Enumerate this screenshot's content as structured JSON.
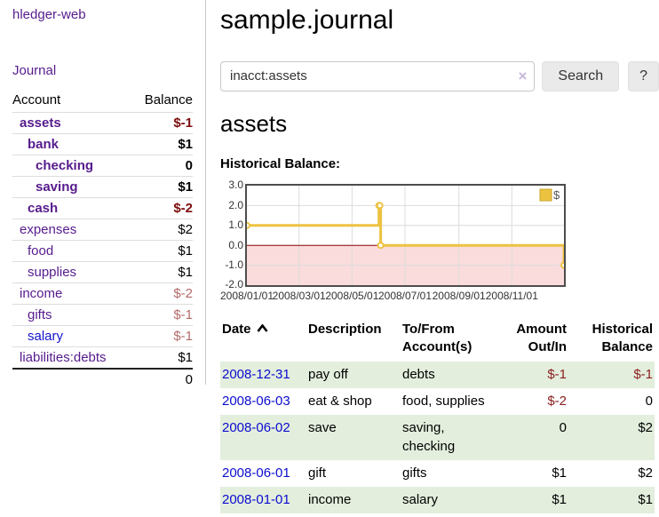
{
  "app": {
    "brand": "hledger-web",
    "nav_journal": "Journal"
  },
  "sidebar": {
    "columns": {
      "account": "Account",
      "balance": "Balance"
    },
    "accounts": [
      {
        "name": "assets",
        "depth": 1,
        "bold": true,
        "link_color": "purple",
        "balance": "$-1",
        "neg": "strong"
      },
      {
        "name": "bank",
        "depth": 2,
        "bold": true,
        "link_color": "purple",
        "balance": "$1",
        "neg": "none"
      },
      {
        "name": "checking",
        "depth": 3,
        "bold": true,
        "link_color": "purple",
        "balance": "0",
        "neg": "none"
      },
      {
        "name": "saving",
        "depth": 3,
        "bold": true,
        "link_color": "purple",
        "balance": "$1",
        "neg": "none"
      },
      {
        "name": "cash",
        "depth": 2,
        "bold": true,
        "link_color": "purple",
        "balance": "$-2",
        "neg": "strong"
      },
      {
        "name": "expenses",
        "depth": 1,
        "bold": false,
        "link_color": "purple",
        "balance": "$2",
        "neg": "none"
      },
      {
        "name": "food",
        "depth": 2,
        "bold": false,
        "link_color": "purple",
        "balance": "$1",
        "neg": "none"
      },
      {
        "name": "supplies",
        "depth": 2,
        "bold": false,
        "link_color": "purple",
        "balance": "$1",
        "neg": "none"
      },
      {
        "name": "income",
        "depth": 1,
        "bold": false,
        "link_color": "purple",
        "balance": "$-2",
        "neg": "soft"
      },
      {
        "name": "gifts",
        "depth": 2,
        "bold": false,
        "link_color": "purple",
        "balance": "$-1",
        "neg": "soft"
      },
      {
        "name": "salary",
        "depth": 2,
        "bold": false,
        "link_color": "blue",
        "balance": "$-1",
        "neg": "soft"
      },
      {
        "name": "liabilities:debts",
        "depth": 1,
        "bold": false,
        "link_color": "purple",
        "balance": "$1",
        "neg": "none"
      }
    ],
    "total": "0"
  },
  "header": {
    "title": "sample.journal"
  },
  "search": {
    "value": "inacct:assets",
    "clear_icon": "×",
    "button": "Search",
    "help_button": "?"
  },
  "account_page": {
    "heading": "assets",
    "chart_title": "Historical Balance:"
  },
  "chart_data": {
    "type": "line",
    "style": "step-after",
    "title": "Historical Balance",
    "series": [
      {
        "name": "$",
        "color": "#edc240",
        "points": [
          [
            "2008-01-01",
            1.0
          ],
          [
            "2008-06-01",
            2.0
          ],
          [
            "2008-06-02",
            2.0
          ],
          [
            "2008-06-03",
            0.0
          ],
          [
            "2008-12-31",
            -1.0
          ]
        ]
      }
    ],
    "x_range": [
      "2008-01-01",
      "2008-12-31"
    ],
    "ylim": [
      -2.0,
      3.0
    ],
    "y_ticks": [
      "3.0",
      "2.0",
      "1.0",
      "0.0",
      "-1.0",
      "-2.0"
    ],
    "x_ticks": [
      "2008/01/01",
      "2008/03/01",
      "2008/05/01",
      "2008/07/01",
      "2008/09/01",
      "2008/11/01"
    ],
    "legend": "$",
    "legend_position": "top-right",
    "grid": true,
    "grid_color": "#dcdcdc",
    "negative_region_color": "#fbdcdc",
    "zero_line_color": "#8b0000",
    "border_color": "#4d4d4d"
  },
  "transactions": {
    "columns": [
      {
        "line1": "Date",
        "line2": "",
        "align": "left",
        "sorted": true
      },
      {
        "line1": "Description",
        "line2": "",
        "align": "left",
        "sorted": false
      },
      {
        "line1": "To/From",
        "line2": "Account(s)",
        "align": "left",
        "sorted": false
      },
      {
        "line1": "Amount",
        "line2": "Out/In",
        "align": "right",
        "sorted": false
      },
      {
        "line1": "Historical",
        "line2": "Balance",
        "align": "right",
        "sorted": false
      }
    ],
    "rows": [
      {
        "date": "2008-12-31",
        "description": "pay off",
        "accounts": "debts",
        "amount": "$-1",
        "amount_neg": true,
        "balance": "$-1",
        "balance_neg": true
      },
      {
        "date": "2008-06-03",
        "description": "eat & shop",
        "accounts": "food, supplies",
        "amount": "$-2",
        "amount_neg": true,
        "balance": "0",
        "balance_neg": false
      },
      {
        "date": "2008-06-02",
        "description": "save",
        "accounts": "saving, checking",
        "amount": "0",
        "amount_neg": false,
        "balance": "$2",
        "balance_neg": false
      },
      {
        "date": "2008-06-01",
        "description": "gift",
        "accounts": "gifts",
        "amount": "$1",
        "amount_neg": false,
        "balance": "$2",
        "balance_neg": false
      },
      {
        "date": "2008-01-01",
        "description": "income",
        "accounts": "salary",
        "amount": "$1",
        "amount_neg": false,
        "balance": "$1",
        "balance_neg": false
      }
    ]
  },
  "colors": {
    "link_purple": "#561b8d",
    "link_blue": "#1414cc",
    "date_blue": "#0c0cce",
    "negative_strong": "#7d0d0d",
    "negative_soft": "#b36b6b",
    "negative_table": "#8b2020",
    "row_stripe_green": "#e3eedd",
    "series_gold": "#edc240"
  }
}
